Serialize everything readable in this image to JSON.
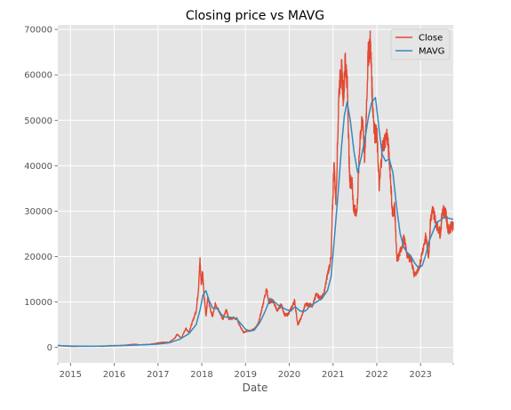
{
  "chart_data": {
    "type": "line",
    "title": "Closing price vs MAVG",
    "xlabel": "Date",
    "ylabel": "",
    "xlim": [
      "2014-09-17",
      "2023-10-01"
    ],
    "ylim": [
      -3400,
      71000
    ],
    "x_ticks": [
      "2015",
      "2016",
      "2017",
      "2018",
      "2019",
      "2020",
      "2021",
      "2022",
      "2023"
    ],
    "y_ticks": [
      0,
      10000,
      20000,
      30000,
      40000,
      50000,
      60000,
      70000
    ],
    "y_tick_labels": [
      "0",
      "10000",
      "20000",
      "30000",
      "40000",
      "50000",
      "60000",
      "70000"
    ],
    "grid": true,
    "legend": "top-right",
    "colors": {
      "close": "#E24A33",
      "mavg": "#348ABD",
      "plot_bg": "#E5E5E5",
      "grid": "#FFFFFF"
    },
    "series": [
      {
        "name": "Close",
        "points": [
          [
            "2014-09-17",
            457
          ],
          [
            "2014-11-01",
            330
          ],
          [
            "2015-01-15",
            210
          ],
          [
            "2015-04-01",
            240
          ],
          [
            "2015-07-01",
            260
          ],
          [
            "2015-10-01",
            240
          ],
          [
            "2015-12-01",
            400
          ],
          [
            "2016-03-01",
            430
          ],
          [
            "2016-06-15",
            700
          ],
          [
            "2016-08-01",
            580
          ],
          [
            "2016-10-15",
            640
          ],
          [
            "2016-12-20",
            900
          ],
          [
            "2017-01-05",
            1000
          ],
          [
            "2017-02-15",
            1150
          ],
          [
            "2017-04-01",
            1100
          ],
          [
            "2017-05-20",
            2000
          ],
          [
            "2017-06-10",
            2900
          ],
          [
            "2017-07-15",
            2000
          ],
          [
            "2017-08-20",
            4200
          ],
          [
            "2017-09-15",
            3300
          ],
          [
            "2017-10-15",
            5600
          ],
          [
            "2017-11-15",
            8000
          ],
          [
            "2017-12-05",
            13000
          ],
          [
            "2017-12-17",
            19400
          ],
          [
            "2017-12-28",
            14000
          ],
          [
            "2018-01-08",
            16500
          ],
          [
            "2018-01-20",
            11500
          ],
          [
            "2018-02-06",
            6900
          ],
          [
            "2018-02-20",
            11300
          ],
          [
            "2018-03-15",
            8200
          ],
          [
            "2018-04-01",
            6800
          ],
          [
            "2018-04-25",
            9600
          ],
          [
            "2018-05-20",
            8400
          ],
          [
            "2018-06-25",
            6200
          ],
          [
            "2018-07-25",
            8200
          ],
          [
            "2018-08-15",
            6300
          ],
          [
            "2018-09-15",
            6500
          ],
          [
            "2018-10-20",
            6400
          ],
          [
            "2018-11-20",
            4500
          ],
          [
            "2018-12-15",
            3300
          ],
          [
            "2019-01-15",
            3600
          ],
          [
            "2019-02-15",
            3700
          ],
          [
            "2019-03-15",
            4000
          ],
          [
            "2019-04-15",
            5200
          ],
          [
            "2019-05-15",
            8000
          ],
          [
            "2019-06-26",
            12900
          ],
          [
            "2019-07-15",
            10000
          ],
          [
            "2019-08-15",
            10300
          ],
          [
            "2019-09-26",
            8000
          ],
          [
            "2019-10-26",
            9500
          ],
          [
            "2019-11-25",
            7100
          ],
          [
            "2019-12-20",
            7200
          ],
          [
            "2020-01-20",
            8700
          ],
          [
            "2020-02-15",
            10300
          ],
          [
            "2020-03-13",
            4900
          ],
          [
            "2020-04-15",
            6900
          ],
          [
            "2020-05-15",
            9500
          ],
          [
            "2020-06-15",
            9400
          ],
          [
            "2020-07-15",
            9200
          ],
          [
            "2020-08-15",
            11800
          ],
          [
            "2020-09-15",
            10800
          ],
          [
            "2020-10-15",
            11500
          ],
          [
            "2020-11-15",
            16000
          ],
          [
            "2020-12-15",
            19500
          ],
          [
            "2021-01-08",
            40700
          ],
          [
            "2021-01-25",
            32000
          ],
          [
            "2021-02-20",
            57000
          ],
          [
            "2021-03-13",
            61200
          ],
          [
            "2021-03-28",
            55000
          ],
          [
            "2021-04-14",
            64000
          ],
          [
            "2021-05-01",
            57000
          ],
          [
            "2021-05-19",
            37000
          ],
          [
            "2021-06-10",
            36000
          ],
          [
            "2021-06-22",
            30000
          ],
          [
            "2021-07-20",
            30000
          ],
          [
            "2021-08-15",
            47000
          ],
          [
            "2021-09-07",
            50000
          ],
          [
            "2021-09-22",
            41000
          ],
          [
            "2021-10-20",
            64000
          ],
          [
            "2021-11-09",
            67500
          ],
          [
            "2021-11-26",
            54000
          ],
          [
            "2021-12-15",
            47000
          ],
          [
            "2022-01-01",
            47000
          ],
          [
            "2022-01-22",
            35000
          ],
          [
            "2022-02-15",
            44000
          ],
          [
            "2022-03-28",
            47000
          ],
          [
            "2022-04-20",
            40000
          ],
          [
            "2022-05-12",
            29000
          ],
          [
            "2022-05-30",
            31000
          ],
          [
            "2022-06-18",
            19000
          ],
          [
            "2022-07-15",
            21000
          ],
          [
            "2022-08-15",
            24000
          ],
          [
            "2022-09-15",
            20000
          ],
          [
            "2022-10-15",
            19500
          ],
          [
            "2022-11-09",
            16000
          ],
          [
            "2022-12-15",
            16800
          ],
          [
            "2023-01-15",
            21000
          ],
          [
            "2023-02-15",
            24500
          ],
          [
            "2023-03-10",
            20000
          ],
          [
            "2023-03-25",
            28000
          ],
          [
            "2023-04-14",
            30400
          ],
          [
            "2023-05-10",
            27500
          ],
          [
            "2023-06-15",
            25000
          ],
          [
            "2023-07-05",
            30500
          ],
          [
            "2023-08-01",
            29200
          ],
          [
            "2023-08-20",
            26000
          ],
          [
            "2023-09-15",
            26500
          ],
          [
            "2023-10-01",
            27000
          ]
        ]
      },
      {
        "name": "MAVG",
        "points": [
          [
            "2014-09-17",
            400
          ],
          [
            "2015-01-15",
            300
          ],
          [
            "2015-07-01",
            250
          ],
          [
            "2016-01-01",
            350
          ],
          [
            "2016-06-15",
            500
          ],
          [
            "2016-12-20",
            700
          ],
          [
            "2017-04-01",
            1000
          ],
          [
            "2017-07-01",
            1800
          ],
          [
            "2017-09-15",
            3000
          ],
          [
            "2017-11-15",
            5000
          ],
          [
            "2017-12-20",
            8500
          ],
          [
            "2018-01-10",
            11500
          ],
          [
            "2018-02-05",
            12500
          ],
          [
            "2018-03-01",
            10500
          ],
          [
            "2018-04-01",
            8700
          ],
          [
            "2018-05-15",
            8500
          ],
          [
            "2018-06-15",
            7200
          ],
          [
            "2018-07-15",
            6700
          ],
          [
            "2018-09-01",
            6600
          ],
          [
            "2018-10-15",
            6400
          ],
          [
            "2018-12-01",
            5000
          ],
          [
            "2019-01-01",
            4000
          ],
          [
            "2019-02-01",
            3600
          ],
          [
            "2019-03-15",
            3800
          ],
          [
            "2019-05-01",
            5500
          ],
          [
            "2019-06-15",
            8000
          ],
          [
            "2019-07-26",
            10800
          ],
          [
            "2019-09-01",
            10000
          ],
          [
            "2019-10-15",
            9000
          ],
          [
            "2019-12-01",
            8400
          ],
          [
            "2020-01-15",
            8000
          ],
          [
            "2020-02-20",
            9000
          ],
          [
            "2020-04-01",
            8000
          ],
          [
            "2020-05-15",
            8000
          ],
          [
            "2020-07-01",
            9300
          ],
          [
            "2020-08-15",
            10000
          ],
          [
            "2020-10-01",
            10800
          ],
          [
            "2020-11-15",
            12500
          ],
          [
            "2020-12-15",
            15500
          ],
          [
            "2021-01-15",
            25000
          ],
          [
            "2021-02-15",
            35000
          ],
          [
            "2021-03-15",
            45000
          ],
          [
            "2021-04-05",
            51000
          ],
          [
            "2021-04-28",
            54000
          ],
          [
            "2021-05-25",
            50000
          ],
          [
            "2021-06-25",
            43000
          ],
          [
            "2021-07-25",
            38500
          ],
          [
            "2021-08-25",
            42000
          ],
          [
            "2021-09-25",
            46000
          ],
          [
            "2021-10-25",
            51000
          ],
          [
            "2021-11-20",
            54000
          ],
          [
            "2021-12-21",
            55000
          ],
          [
            "2022-01-20",
            48000
          ],
          [
            "2022-02-15",
            42500
          ],
          [
            "2022-03-15",
            41000
          ],
          [
            "2022-04-15",
            41500
          ],
          [
            "2022-05-15",
            38500
          ],
          [
            "2022-06-15",
            31000
          ],
          [
            "2022-07-15",
            25000
          ],
          [
            "2022-08-15",
            22000
          ],
          [
            "2022-09-15",
            20800
          ],
          [
            "2022-10-15",
            20000
          ],
          [
            "2022-11-15",
            18500
          ],
          [
            "2022-12-15",
            17500
          ],
          [
            "2023-01-15",
            18000
          ],
          [
            "2023-02-15",
            20500
          ],
          [
            "2023-03-15",
            23500
          ],
          [
            "2023-04-15",
            25500
          ],
          [
            "2023-05-15",
            27500
          ],
          [
            "2023-06-15",
            28000
          ],
          [
            "2023-07-15",
            28600
          ],
          [
            "2023-08-15",
            28500
          ],
          [
            "2023-10-01",
            28200
          ]
        ]
      }
    ]
  }
}
